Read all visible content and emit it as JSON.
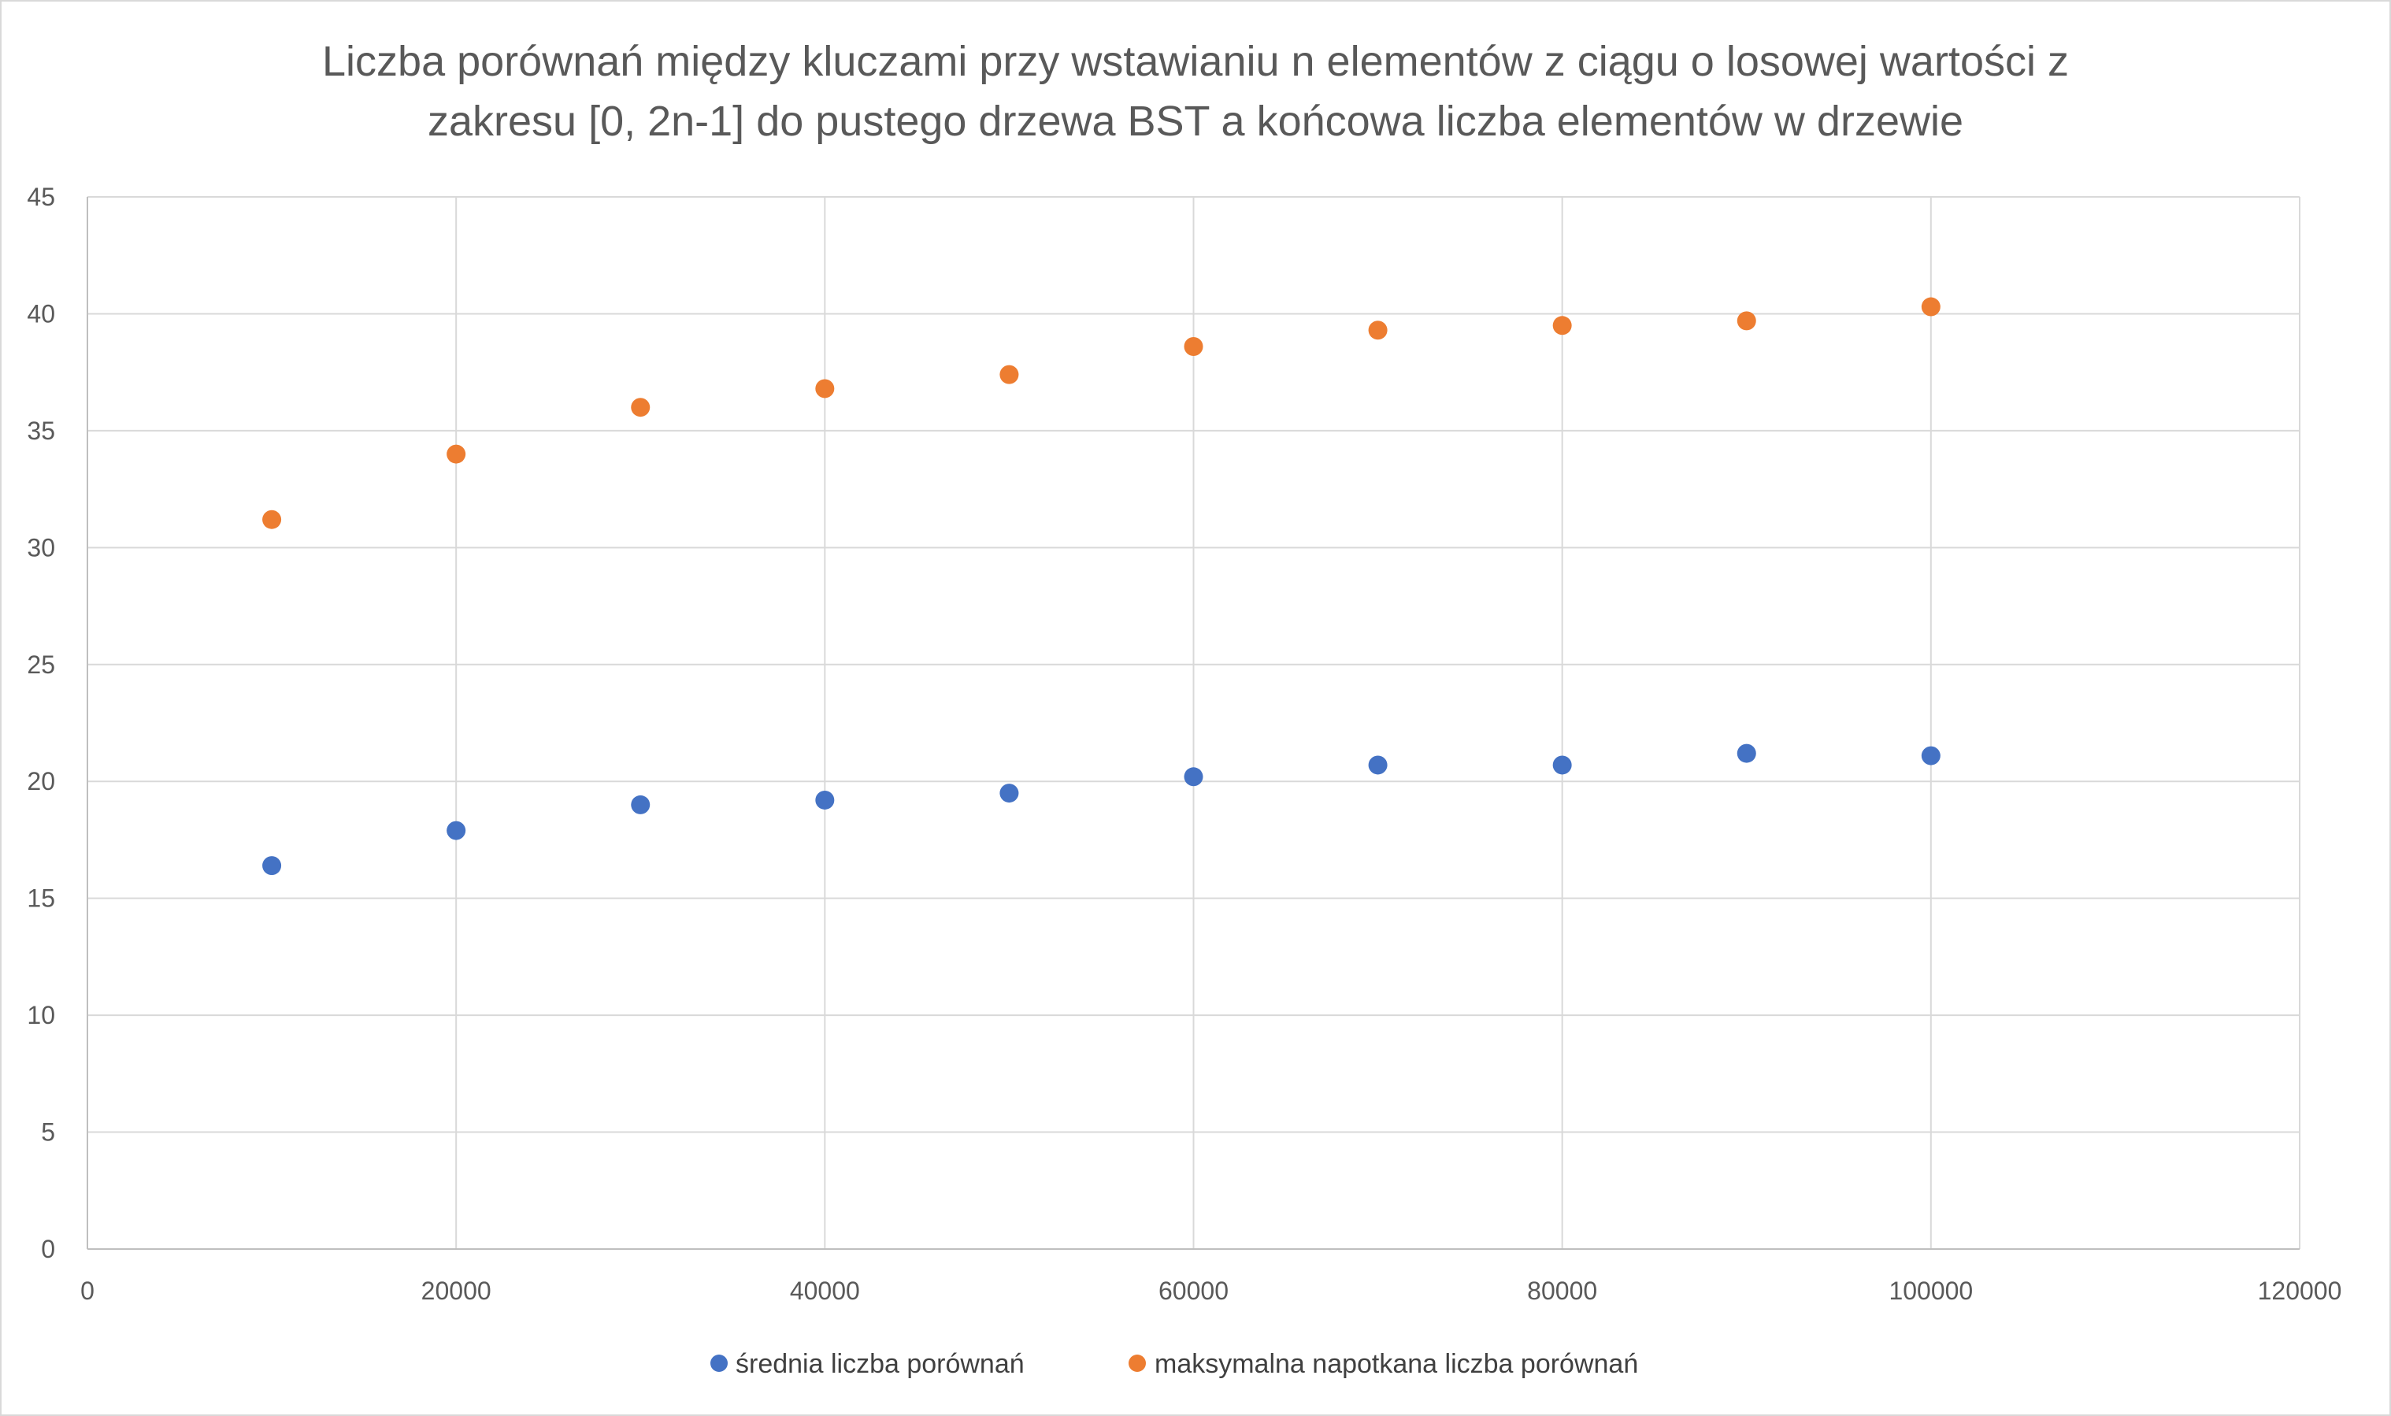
{
  "chart_data": {
    "type": "scatter",
    "title_lines": [
      "Liczba porównań między kluczami przy wstawianiu n elementów z ciągu o losowej wartości z",
      "zakresu [0, 2n-1] do pustego drzewa BST a końcowa liczba elementów w drzewie"
    ],
    "xlim": [
      0,
      120000
    ],
    "ylim": [
      0,
      45
    ],
    "x_ticks": [
      "0",
      "20000",
      "40000",
      "60000",
      "80000",
      "100000",
      "120000"
    ],
    "y_ticks": [
      "0",
      "5",
      "10",
      "15",
      "20",
      "25",
      "30",
      "35",
      "40",
      "45"
    ],
    "grid": true,
    "legend_position": "bottom",
    "x": [
      10000,
      20000,
      30000,
      40000,
      50000,
      60000,
      70000,
      80000,
      90000,
      100000
    ],
    "series": [
      {
        "name": "średnia liczba porównań",
        "color": "#4472c4",
        "values": [
          16.4,
          17.9,
          19.0,
          19.2,
          19.5,
          20.2,
          20.7,
          20.7,
          21.2,
          21.1
        ]
      },
      {
        "name": "maksymalna napotkana liczba porównań",
        "color": "#ed7d31",
        "values": [
          31.2,
          34.0,
          36.0,
          36.8,
          37.4,
          38.6,
          39.3,
          39.5,
          39.7,
          40.3
        ]
      }
    ]
  }
}
